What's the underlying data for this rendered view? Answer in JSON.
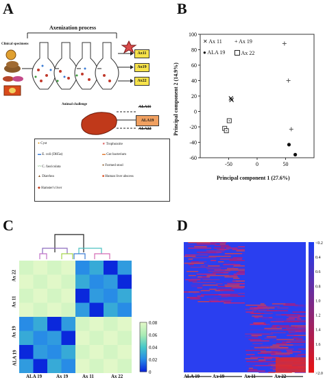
{
  "panels": {
    "a": "A",
    "b": "B",
    "c": "C",
    "d": "D"
  },
  "panel_a": {
    "process_title": "Axenization process",
    "clinical_label": "Clinical specimens",
    "animal_challenge": "Animal challenge",
    "outputs": [
      "Ax11",
      "Ax19",
      "Ax22"
    ],
    "challenge_labels": [
      "ALA11",
      "ALA19",
      "ALA22"
    ],
    "legend": [
      {
        "icon": "cyst-icon",
        "label": "Cyst"
      },
      {
        "icon": "ecoli-icon",
        "label": "E. coli (DH5α)"
      },
      {
        "icon": "cfasciculata-icon",
        "label": "C. fasciculata"
      },
      {
        "icon": "diarrhea-icon",
        "label": "Diarrhea"
      },
      {
        "icon": "liver-icon",
        "label": "Hamster's liver"
      },
      {
        "icon": "trophozoite-icon",
        "label": "Trophozoite"
      },
      {
        "icon": "gut-bacterium-icon",
        "label": "Gut bacterium"
      },
      {
        "icon": "formed-stool-icon",
        "label": "Formed stool"
      },
      {
        "icon": "abscess-icon",
        "label": "Human liver abscess"
      }
    ]
  },
  "chart_data": [
    {
      "type": "scatter",
      "xlabel": "Principal component 1 (27.6%)",
      "ylabel": "Principal component 2 (14.9%)",
      "xlim": [
        -100,
        100
      ],
      "ylim": [
        -60,
        100
      ],
      "xticks": [
        -50,
        0,
        50
      ],
      "yticks": [
        -60,
        -40,
        -20,
        0,
        20,
        40,
        60,
        80,
        100
      ],
      "legend_position": "top-left",
      "series": [
        {
          "name": "Ax 11",
          "marker": "x",
          "points": [
            [
              -46,
              17
            ],
            [
              -45,
              15
            ]
          ]
        },
        {
          "name": "Ax 19",
          "marker": "plus",
          "points": [
            [
              48,
              88
            ],
            [
              55,
              40
            ],
            [
              60,
              -23
            ]
          ]
        },
        {
          "name": "ALA 19",
          "marker": "circle",
          "points": [
            [
              56,
              -43
            ],
            [
              67,
              -56
            ]
          ]
        },
        {
          "name": "Ax 22",
          "marker": "boxdot",
          "points": [
            [
              -49,
              -12
            ],
            [
              -57,
              -22
            ],
            [
              -54,
              -25
            ]
          ]
        }
      ]
    },
    {
      "type": "heatmap",
      "labels": [
        "ALA 19",
        "Ax 19",
        "Ax 11",
        "Ax 22"
      ],
      "colorbar_ticks": [
        "0",
        "0.02",
        "0.04",
        "0.06",
        "0.08"
      ],
      "blocks": [
        [
          0.0,
          0.02,
          0.08,
          0.08
        ],
        [
          0.02,
          0.0,
          0.08,
          0.08
        ],
        [
          0.08,
          0.08,
          0.0,
          0.02
        ],
        [
          0.08,
          0.08,
          0.02,
          0.0
        ]
      ]
    },
    {
      "type": "heatmap",
      "x_groups": [
        "ALA 19",
        "Ax 19",
        "Ax 11",
        "Ax 22"
      ],
      "colorbar_ticks": [
        "<0.2",
        "0.4",
        "0.6",
        "0.8",
        "1.0",
        "1.2",
        "1.4",
        "1.6",
        "1.8",
        ">2.0"
      ]
    }
  ]
}
